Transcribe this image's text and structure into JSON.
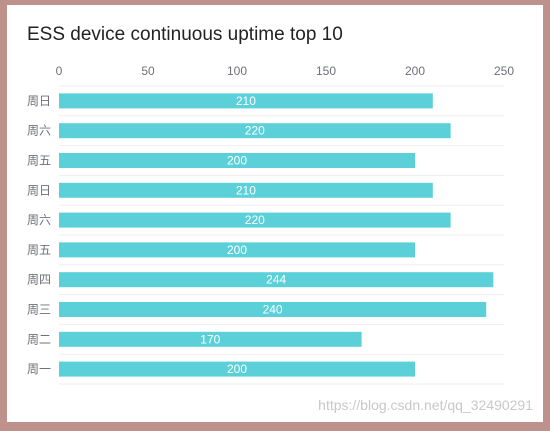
{
  "chart_data": {
    "type": "bar",
    "orientation": "horizontal",
    "title": "ESS device continuous uptime top 10",
    "categories": [
      "周日",
      "周六",
      "周五",
      "周日",
      "周六",
      "周五",
      "周四",
      "周三",
      "周二",
      "周一"
    ],
    "values": [
      210,
      220,
      200,
      210,
      220,
      200,
      244,
      240,
      170,
      200
    ],
    "xlim": [
      0,
      250
    ],
    "x_ticks": [
      0,
      50,
      100,
      150,
      200,
      250
    ],
    "x_axis_position": "top",
    "grid": true,
    "data_labels": "inside",
    "bar_color": "#5bd0d8"
  },
  "watermark": "https://blog.csdn.net/qq_32490291"
}
